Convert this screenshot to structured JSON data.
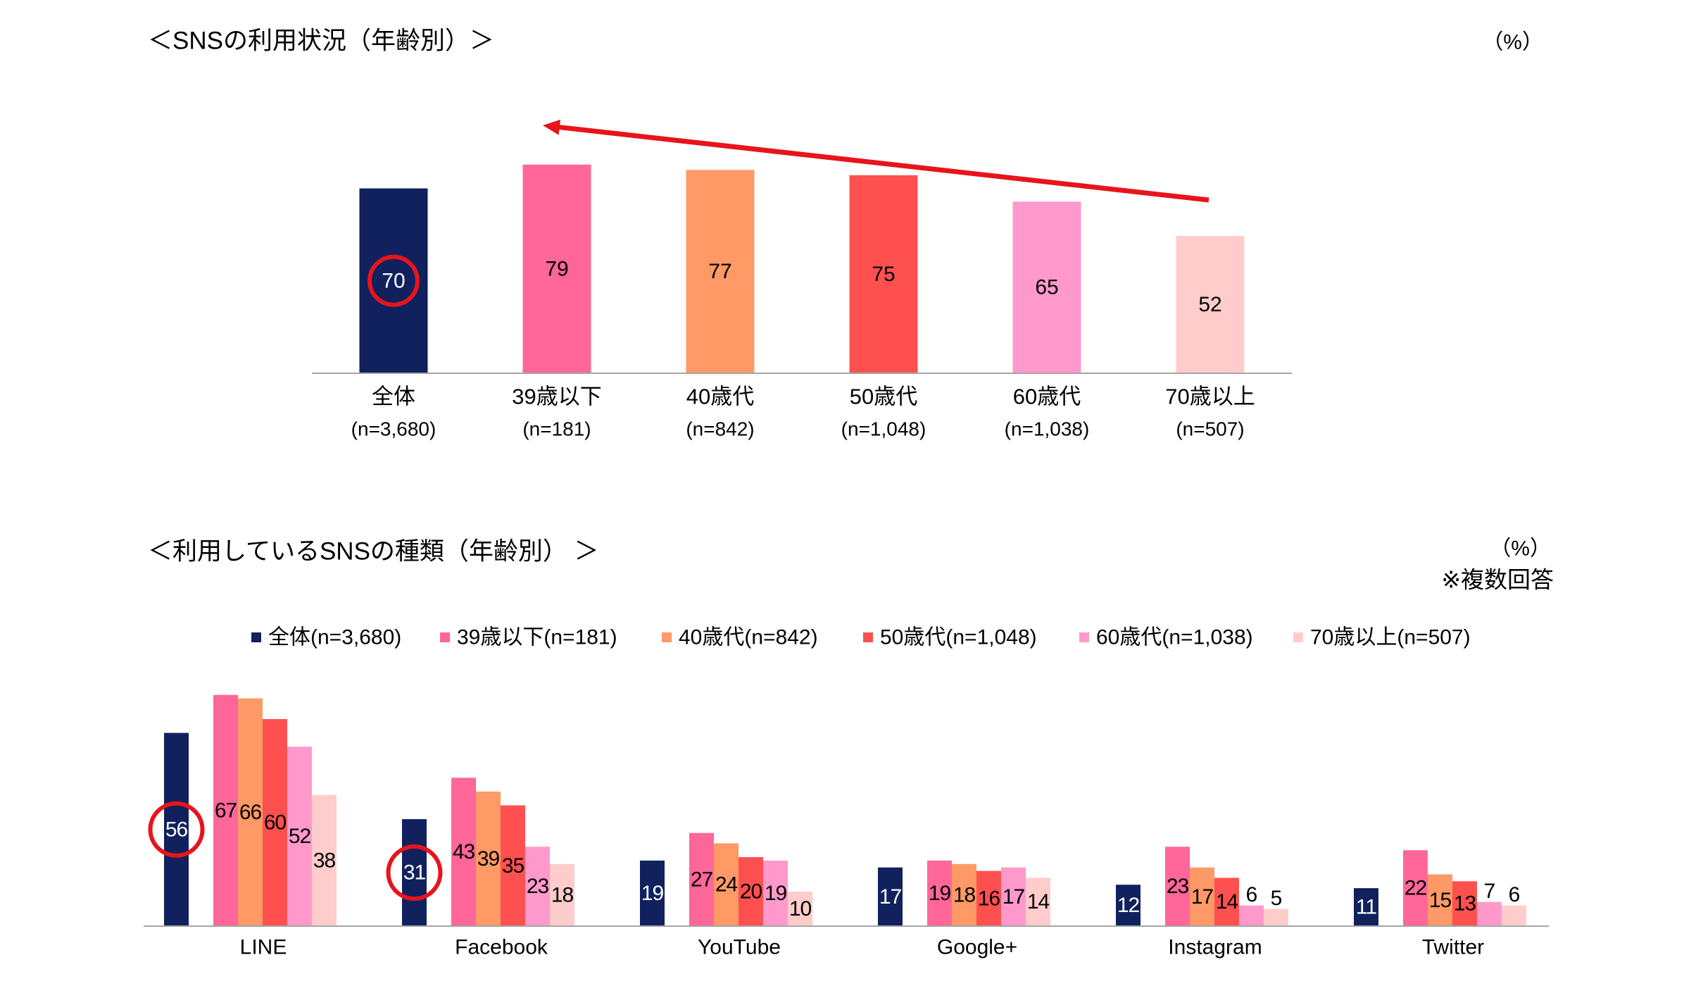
{
  "chart_data": [
    {
      "type": "bar",
      "title": "＜SNSの利用状況（年齢別）＞",
      "unit": "（%）",
      "categories": [
        "全体",
        "39歳以下",
        "40歳代",
        "50歳代",
        "60歳代",
        "70歳以上"
      ],
      "sample_sizes": [
        "(n=3,680)",
        "(n=181)",
        "(n=842)",
        "(n=1,048)",
        "(n=1,038)",
        "(n=507)"
      ],
      "values": [
        70,
        79,
        77,
        75,
        65,
        52
      ],
      "colors": [
        "#10215e",
        "#ff6699",
        "#ff9966",
        "#ff5050",
        "#ff99cc",
        "#ffcccc"
      ],
      "ylim": [
        0,
        100
      ],
      "grid": false,
      "highlight": {
        "category": "全体",
        "color": "#e8141b"
      },
      "arrow": {
        "from": "70歳以上",
        "to": "39歳以下",
        "color": "#e8141b"
      }
    },
    {
      "type": "bar",
      "title": "＜利用しているSNSの種類（年齢別） ＞",
      "unit": "（%）",
      "note": "※複数回答",
      "legend": "top",
      "categories": [
        "LINE",
        "Facebook",
        "YouTube",
        "Google+",
        "Instagram",
        "Twitter"
      ],
      "series": [
        {
          "name": "全体(n=3,680)",
          "color": "#10215e",
          "values": [
            56,
            31,
            19,
            17,
            12,
            11
          ]
        },
        {
          "name": "39歳以下(n=181)",
          "color": "#ff6699",
          "values": [
            67,
            43,
            27,
            19,
            23,
            22
          ]
        },
        {
          "name": "40歳代(n=842)",
          "color": "#ff9966",
          "values": [
            66,
            39,
            24,
            18,
            17,
            15
          ]
        },
        {
          "name": "50歳代(n=1,048)",
          "color": "#ff5050",
          "values": [
            60,
            35,
            20,
            16,
            14,
            13
          ]
        },
        {
          "name": "60歳代(n=1,038)",
          "color": "#ff99cc",
          "values": [
            52,
            23,
            19,
            17,
            6,
            7
          ]
        },
        {
          "name": "70歳以上(n=507)",
          "color": "#ffcccc",
          "values": [
            38,
            18,
            10,
            14,
            5,
            6
          ]
        }
      ],
      "ylim": [
        0,
        80
      ],
      "grid": false,
      "highlights": [
        {
          "series": "全体(n=3,680)",
          "category": "LINE",
          "color": "#e8141b"
        },
        {
          "series": "全体(n=3,680)",
          "category": "Facebook",
          "color": "#e8141b"
        }
      ]
    }
  ]
}
